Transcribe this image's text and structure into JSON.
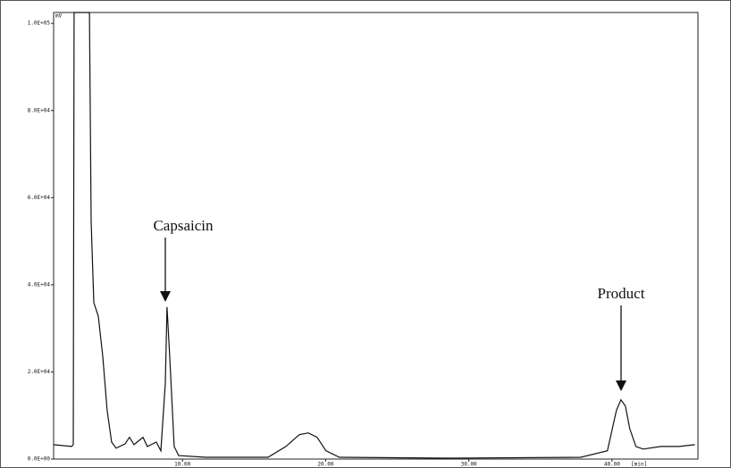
{
  "chart_data": {
    "type": "line",
    "ylabel": "mV",
    "xlabel": "[min]",
    "annotations": [
      "Capsaicin",
      "Product"
    ],
    "xlim": [
      1,
      46
    ],
    "ylim": [
      0,
      102500
    ],
    "xticks": [
      {
        "value": 10,
        "label": "10.00"
      },
      {
        "value": 20,
        "label": "20.00"
      },
      {
        "value": 30,
        "label": "30.00"
      },
      {
        "value": 40,
        "label": "40.00"
      }
    ],
    "yticks": [
      {
        "value": 0,
        "label": "0.0E+00"
      },
      {
        "value": 20000,
        "label": "2.0E+04"
      },
      {
        "value": 40000,
        "label": "4.0E+04"
      },
      {
        "value": 60000,
        "label": "6.0E+04"
      },
      {
        "value": 80000,
        "label": "8.0E+04"
      },
      {
        "value": 100000,
        "label": "1.0E+05"
      }
    ],
    "grid": false,
    "x": [
      1.0,
      2.25,
      2.37,
      2.43,
      2.62,
      3.5,
      3.62,
      3.81,
      4.12,
      4.43,
      4.74,
      5.05,
      5.37,
      5.99,
      6.3,
      6.61,
      7.24,
      7.55,
      8.17,
      8.49,
      8.8,
      8.92,
      9.11,
      9.42,
      9.73,
      11.61,
      15.97,
      17.22,
      18.16,
      18.78,
      19.4,
      20.02,
      20.96,
      28.45,
      37.81,
      39.68,
      40.31,
      40.62,
      40.93,
      41.24,
      41.67,
      42.17,
      43.42,
      44.67,
      45.79
    ],
    "series": [
      {
        "color": "#111111",
        "values": [
          3300,
          2900,
          3300,
          102500,
          102500,
          102500,
          54500,
          35900,
          32800,
          23600,
          11200,
          3900,
          2500,
          3500,
          5000,
          3300,
          5000,
          2900,
          3900,
          1900,
          17400,
          34900,
          23600,
          2900,
          800,
          400,
          400,
          2900,
          5600,
          6000,
          5000,
          1900,
          400,
          200,
          400,
          1900,
          11200,
          13600,
          12200,
          7000,
          2900,
          2300,
          2900,
          2900,
          3300
        ]
      }
    ]
  }
}
